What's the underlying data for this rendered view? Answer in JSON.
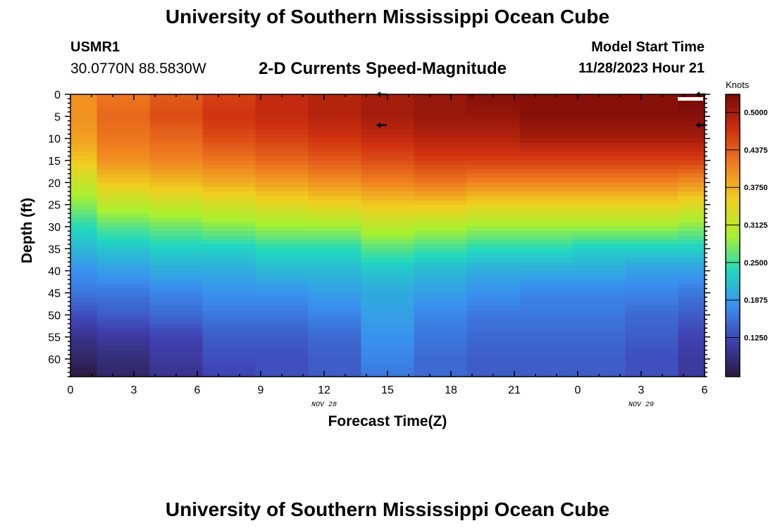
{
  "header": {
    "title": "University of Southern Mississippi Ocean Cube",
    "station": "USMR1",
    "coordinates": "30.0770N  88.5830W",
    "subtitle": "2-D Currents Speed-Magnitude",
    "model_start_label": "Model Start Time",
    "model_start_value": "11/28/2023 Hour 21"
  },
  "footer": {
    "title": "University of Southern Mississippi Ocean Cube"
  },
  "chart_data": {
    "type": "heatmap",
    "title": "2-D Currents Speed-Magnitude",
    "xlabel": "Forecast Time(Z)",
    "ylabel": "Depth (ft)",
    "x_ticks": [
      "0",
      "3",
      "6",
      "9",
      "12",
      "15",
      "18",
      "21",
      "0",
      "3",
      "6"
    ],
    "x_tick_hours": [
      0,
      3,
      6,
      9,
      12,
      15,
      18,
      21,
      24,
      27,
      30
    ],
    "date_labels": [
      {
        "text": "NOV 28",
        "hour": 12
      },
      {
        "text": "NOV 29",
        "hour": 27
      }
    ],
    "y_ticks": [
      0,
      5,
      10,
      15,
      20,
      25,
      30,
      35,
      40,
      45,
      50,
      55,
      60
    ],
    "xlim": [
      0,
      30
    ],
    "ylim": [
      0,
      64
    ],
    "colorbar": {
      "label": "Knots",
      "ticks": [
        "0.5000",
        "0.4375",
        "0.3750",
        "0.3125",
        "0.2500",
        "0.1875",
        "0.1250"
      ],
      "tick_values": [
        0.5,
        0.4375,
        0.375,
        0.3125,
        0.25,
        0.1875,
        0.125
      ],
      "range": [
        0.06,
        0.53
      ],
      "stops": [
        "#2a1a3e",
        "#4040b0",
        "#3a8ff0",
        "#20d8c0",
        "#a8f030",
        "#f0d020",
        "#f08020",
        "#d03010",
        "#780a08"
      ]
    },
    "time_columns_hours": [
      0,
      2.5,
      5,
      7.5,
      10,
      12.5,
      15,
      17.5,
      20,
      22.5,
      25,
      27.5,
      30
    ],
    "depth_levels_ft": [
      0,
      5,
      10,
      15,
      20,
      25,
      30,
      35,
      40,
      45,
      50,
      55,
      60,
      64
    ],
    "speed_knots": [
      [
        0.4,
        0.4,
        0.39,
        0.36,
        0.32,
        0.28,
        0.24,
        0.21,
        0.18,
        0.16,
        0.13,
        0.1,
        0.08,
        0.06
      ],
      [
        0.42,
        0.43,
        0.42,
        0.4,
        0.36,
        0.31,
        0.26,
        0.22,
        0.19,
        0.16,
        0.14,
        0.11,
        0.09,
        0.08
      ],
      [
        0.44,
        0.45,
        0.43,
        0.41,
        0.37,
        0.32,
        0.27,
        0.23,
        0.2,
        0.17,
        0.15,
        0.12,
        0.11,
        0.1
      ],
      [
        0.46,
        0.47,
        0.45,
        0.42,
        0.38,
        0.33,
        0.28,
        0.23,
        0.2,
        0.18,
        0.16,
        0.14,
        0.13,
        0.12
      ],
      [
        0.48,
        0.48,
        0.46,
        0.43,
        0.39,
        0.34,
        0.29,
        0.24,
        0.21,
        0.18,
        0.16,
        0.14,
        0.13,
        0.13
      ],
      [
        0.49,
        0.49,
        0.47,
        0.44,
        0.4,
        0.35,
        0.29,
        0.24,
        0.21,
        0.19,
        0.17,
        0.15,
        0.14,
        0.14
      ],
      [
        0.5,
        0.5,
        0.48,
        0.45,
        0.41,
        0.36,
        0.31,
        0.26,
        0.22,
        0.2,
        0.19,
        0.18,
        0.17,
        0.16
      ],
      [
        0.51,
        0.51,
        0.49,
        0.46,
        0.42,
        0.36,
        0.3,
        0.25,
        0.21,
        0.19,
        0.17,
        0.16,
        0.15,
        0.15
      ],
      [
        0.52,
        0.51,
        0.49,
        0.46,
        0.41,
        0.35,
        0.29,
        0.24,
        0.2,
        0.18,
        0.16,
        0.15,
        0.14,
        0.14
      ],
      [
        0.52,
        0.52,
        0.5,
        0.46,
        0.41,
        0.35,
        0.29,
        0.24,
        0.2,
        0.17,
        0.16,
        0.15,
        0.14,
        0.14
      ],
      [
        0.52,
        0.52,
        0.5,
        0.46,
        0.41,
        0.35,
        0.29,
        0.23,
        0.2,
        0.17,
        0.16,
        0.15,
        0.14,
        0.14
      ],
      [
        0.52,
        0.52,
        0.5,
        0.46,
        0.41,
        0.35,
        0.29,
        0.23,
        0.19,
        0.17,
        0.15,
        0.14,
        0.13,
        0.13
      ],
      [
        0.53,
        0.52,
        0.5,
        0.46,
        0.4,
        0.34,
        0.28,
        0.23,
        0.19,
        0.16,
        0.14,
        0.12,
        0.11,
        0.11
      ]
    ],
    "vector_arrows": [
      {
        "hour": 14.7,
        "depth_ft": 0,
        "direction": "west"
      },
      {
        "hour": 14.7,
        "depth_ft": 7,
        "direction": "west"
      },
      {
        "hour": 29.8,
        "depth_ft": 0,
        "direction": "west"
      },
      {
        "hour": 29.8,
        "depth_ft": 7,
        "direction": "west"
      }
    ]
  }
}
